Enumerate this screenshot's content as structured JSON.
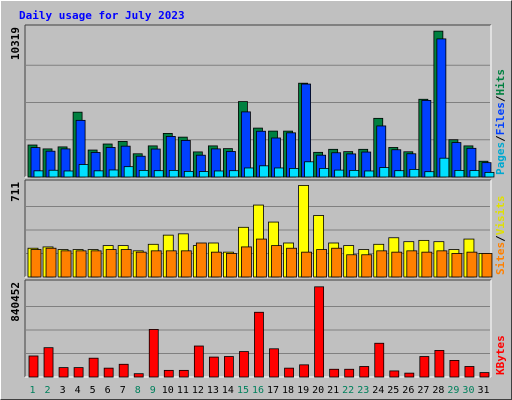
{
  "chart_data": {
    "type": "bar",
    "title": "Daily usage for July 2023",
    "categories": [
      "1",
      "2",
      "3",
      "4",
      "5",
      "6",
      "7",
      "8",
      "9",
      "10",
      "11",
      "12",
      "13",
      "14",
      "15",
      "16",
      "17",
      "18",
      "19",
      "20",
      "21",
      "22",
      "23",
      "24",
      "25",
      "26",
      "27",
      "28",
      "29",
      "30",
      "31"
    ],
    "weekend_days": [
      "1",
      "2",
      "8",
      "9",
      "15",
      "16",
      "22",
      "23",
      "29",
      "30"
    ],
    "colors": {
      "title": "#0000ff",
      "hits": "#008040",
      "files": "#0040ff",
      "pages": "#00e0ff",
      "visits": "#ffff00",
      "sites": "#ff8000",
      "kbytes": "#ff0000",
      "weekend_label": "#00805c",
      "weekday_label": "#000000"
    },
    "panels": [
      {
        "id": "hits-files-pages",
        "max_label": "10319",
        "ymax": 10319,
        "legend": [
          {
            "text": "Pages",
            "color": "#00a8d0"
          },
          {
            "text": "/",
            "color": "#000000"
          },
          {
            "text": "Files",
            "color": "#0040ff"
          },
          {
            "text": "/",
            "color": "#000000"
          },
          {
            "text": "Hits",
            "color": "#008040"
          }
        ],
        "series": [
          {
            "name": "Hits",
            "color": "#008040",
            "values": [
              2230,
              1960,
              2100,
              4520,
              1880,
              2300,
              2480,
              1620,
              2170,
              3040,
              2780,
              1750,
              2170,
              1980,
              5260,
              3410,
              3200,
              3200,
              6540,
              1720,
              1930,
              1770,
              1930,
              4090,
              2060,
              1760,
              5420,
              10170,
              2600,
              2170,
              1100
            ]
          },
          {
            "name": "Files",
            "color": "#0040ff",
            "values": [
              2050,
              1800,
              1960,
              3950,
              1710,
              2060,
              2150,
              1450,
              1950,
              2830,
              2550,
              1520,
              1960,
              1780,
              4540,
              3190,
              2720,
              3080,
              6480,
              1520,
              1690,
              1610,
              1740,
              3560,
              1900,
              1620,
              5340,
              9630,
              2400,
              2000,
              1000
            ]
          },
          {
            "name": "Pages",
            "color": "#00e0ff",
            "values": [
              430,
              470,
              420,
              870,
              430,
              490,
              720,
              460,
              440,
              460,
              390,
              380,
              420,
              440,
              630,
              780,
              630,
              600,
              1060,
              600,
              480,
              460,
              420,
              660,
              440,
              530,
              370,
              1310,
              460,
              450,
              320
            ]
          }
        ]
      },
      {
        "id": "visits-sites",
        "max_label": "711",
        "ymax": 711,
        "legend": [
          {
            "text": "Sites",
            "color": "#ff8000"
          },
          {
            "text": "/",
            "color": "#000000"
          },
          {
            "text": "Visits",
            "color": "#e0e000"
          }
        ],
        "series": [
          {
            "name": "Visits",
            "color": "#ffff00",
            "values": [
              220,
              230,
              210,
              210,
              210,
              240,
              240,
              200,
              250,
              320,
              330,
              240,
              260,
              190,
              380,
              550,
              420,
              260,
              700,
              470,
              260,
              240,
              210,
              250,
              300,
              270,
              280,
              270,
              210,
              290,
              180
            ]
          },
          {
            "name": "Sites",
            "color": "#ff8000",
            "values": [
              210,
              220,
              200,
              200,
              200,
              210,
              210,
              190,
              200,
              200,
              200,
              260,
              190,
              180,
              230,
              290,
              240,
              220,
              190,
              210,
              220,
              170,
              170,
              200,
              190,
              200,
              190,
              200,
              180,
              190,
              180
            ]
          }
        ]
      },
      {
        "id": "kbytes",
        "max_label": "840452",
        "ymax": 840452,
        "legend": [
          {
            "text": "KBytes",
            "color": "#ff0000"
          }
        ],
        "series": [
          {
            "name": "KBytes",
            "color": "#ff0000",
            "values": [
              190000,
              265000,
              85000,
              85000,
              170000,
              80000,
              115000,
              30000,
              430000,
              60000,
              60000,
              280000,
              180000,
              185000,
              230000,
              585000,
              255000,
              80000,
              110000,
              815000,
              70000,
              70000,
              95000,
              305000,
              55000,
              35000,
              185000,
              240000,
              150000,
              95000,
              40000
            ]
          }
        ]
      }
    ],
    "grid": true,
    "legend_position": "right-vertical"
  }
}
